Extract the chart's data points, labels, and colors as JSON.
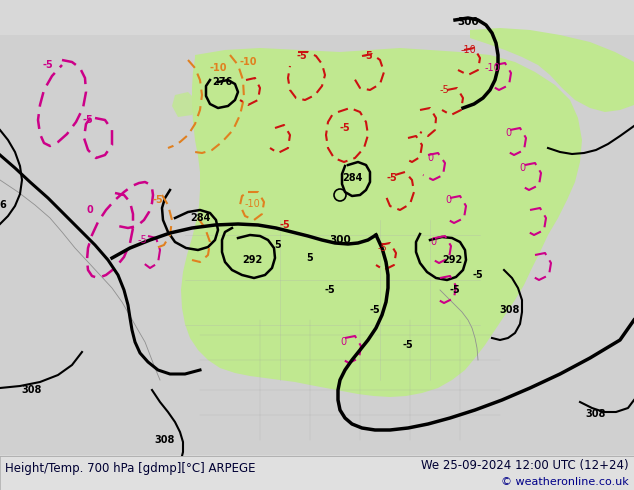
{
  "title_left": "Height/Temp. 700 hPa [gdmp][°C] ARPEGE",
  "title_right": "We 25-09-2024 12:00 UTC (12+24)",
  "copyright": "© weatheronline.co.uk",
  "bg_color": "#d8d8d8",
  "map_gray": "#c8c8c8",
  "green_color": "#c0e890",
  "bottom_bar_color": "#e8e8e8",
  "title_fontsize": 8.5,
  "copyright_fontsize": 8.0,
  "figsize": [
    6.34,
    4.9
  ],
  "dpi": 100
}
